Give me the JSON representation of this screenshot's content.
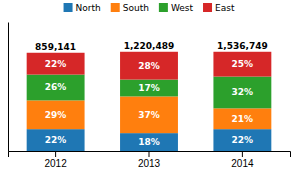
{
  "chart_data": {
    "type": "bar",
    "stacked": true,
    "categories": [
      "2012",
      "2013",
      "2014"
    ],
    "series": [
      {
        "name": "North",
        "values": [
          22,
          18,
          22
        ],
        "value_labels": [
          "22%",
          "18%",
          "22%"
        ]
      },
      {
        "name": "South",
        "values": [
          29,
          37,
          21
        ],
        "value_labels": [
          "29%",
          "37%",
          "21%"
        ]
      },
      {
        "name": "West",
        "values": [
          26,
          17,
          32
        ],
        "value_labels": [
          "26%",
          "17%",
          "32%"
        ]
      },
      {
        "name": "East",
        "values": [
          22,
          28,
          25
        ],
        "value_labels": [
          "22%",
          "28%",
          "25%"
        ]
      }
    ],
    "totals": [
      "859,141",
      "1,220,489",
      "1,536,749"
    ],
    "ylim": [
      0,
      130
    ],
    "tick_labels": "x",
    "data_labels": true,
    "grid": false,
    "legend": "top"
  }
}
